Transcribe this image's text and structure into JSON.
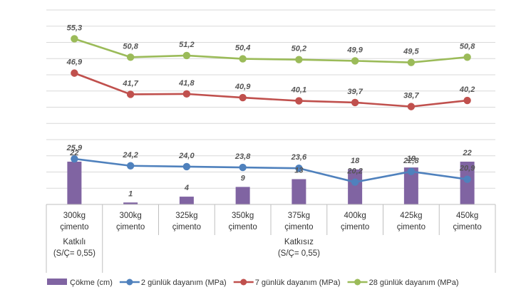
{
  "chart_data": {
    "type": "bar+line",
    "categories": [
      [
        "300kg",
        "çimento"
      ],
      [
        "300kg",
        "çimento"
      ],
      [
        "325kg",
        "çimento"
      ],
      [
        "350kg",
        "çimento"
      ],
      [
        "375kg",
        "çimento"
      ],
      [
        "400kg",
        "çimento"
      ],
      [
        "425kg",
        "çimento"
      ],
      [
        "450kg",
        "çimento"
      ]
    ],
    "groups": [
      {
        "lines": [
          "Katkılı",
          "(S/Ç= 0,55)"
        ],
        "span": [
          0,
          0
        ]
      },
      {
        "lines": [
          "Katkısız",
          "(S/Ç= 0,55)"
        ],
        "span": [
          1,
          7
        ]
      }
    ],
    "bar_series": {
      "name": "Çökme (cm)",
      "color": "#8064a2",
      "values": [
        22,
        1,
        4,
        9,
        13,
        18,
        19,
        22
      ],
      "labels": [
        "22",
        "1",
        "4",
        "9",
        "13",
        "18",
        "19",
        "22"
      ]
    },
    "line_series": [
      {
        "name": "2 günlük dayanım (MPa)",
        "color": "#4f81bd",
        "values": [
          25.9,
          24.2,
          24.0,
          23.8,
          23.6,
          20.2,
          22.8,
          20.9
        ],
        "labels": [
          "25,9",
          "24,2",
          "24,0",
          "23,8",
          "23,6",
          "20,2",
          "22,8",
          "20,9"
        ]
      },
      {
        "name": "7 günlük dayanım (MPa)",
        "color": "#c0504d",
        "values": [
          46.9,
          41.7,
          41.8,
          40.9,
          40.1,
          39.7,
          38.7,
          40.2
        ],
        "labels": [
          "46,9",
          "41,7",
          "41,8",
          "40,9",
          "40,1",
          "39,7",
          "38,7",
          "40,2"
        ]
      },
      {
        "name": "28 günlük dayanım (MPa)",
        "color": "#9bbb59",
        "values": [
          55.3,
          50.8,
          51.2,
          50.4,
          50.2,
          49.9,
          49.5,
          50.8
        ],
        "labels": [
          "55,3",
          "50,8",
          "51,2",
          "50,4",
          "50,2",
          "49,9",
          "49,5",
          "50,8"
        ]
      }
    ],
    "grid": true,
    "legend_position": "bottom"
  }
}
